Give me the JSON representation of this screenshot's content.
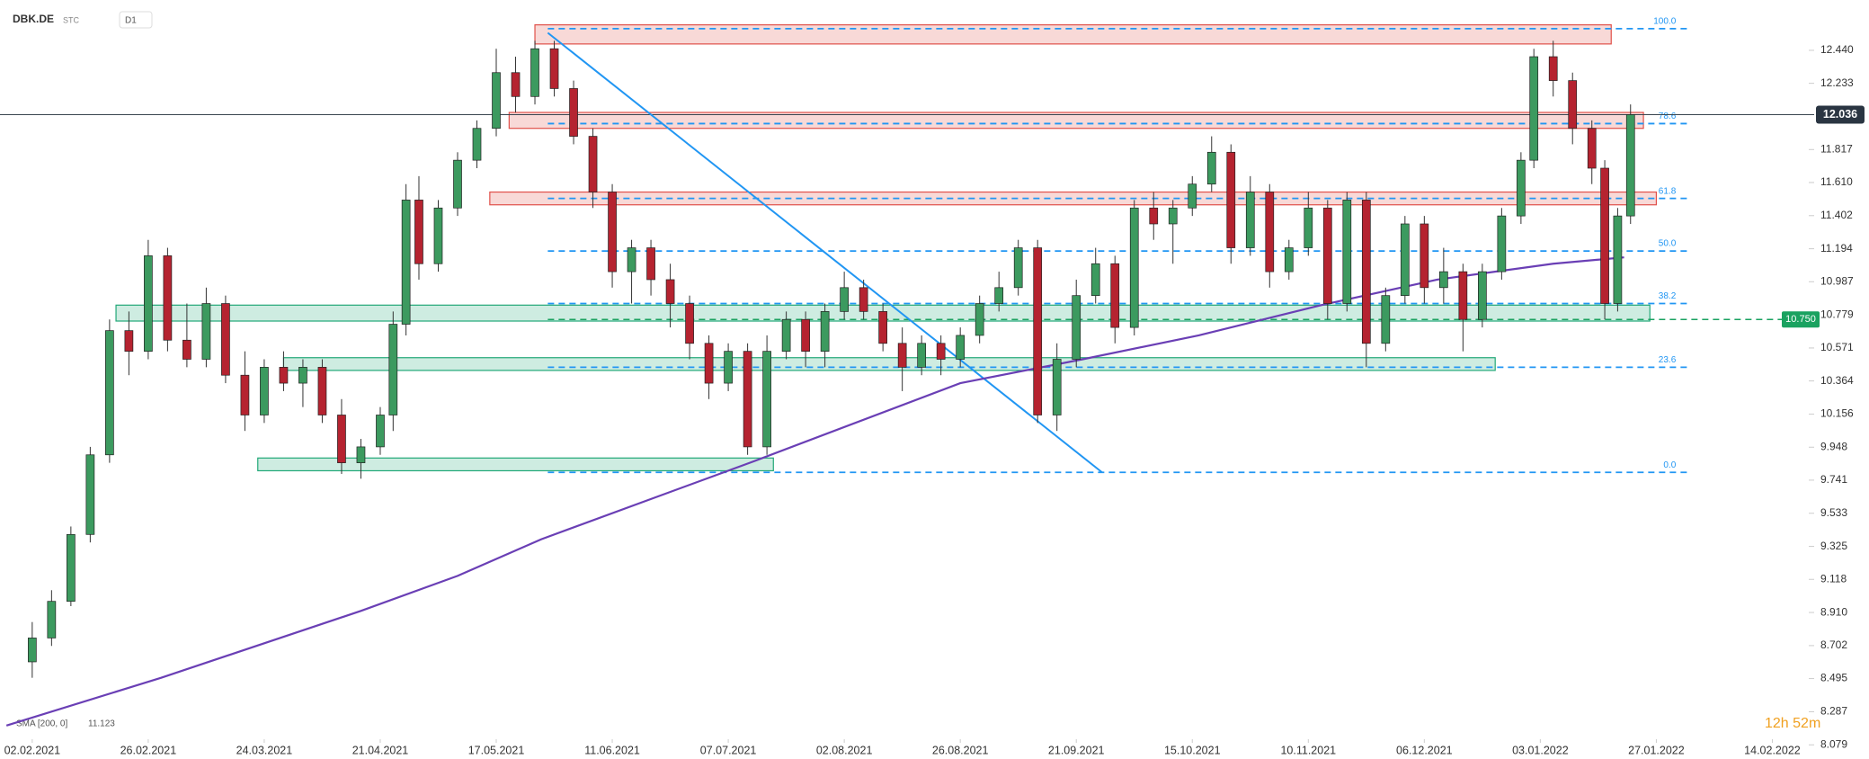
{
  "chart_data": {
    "type": "candlestick",
    "symbol": "DBK.DE",
    "market": "STC",
    "interval": "D1",
    "indicator_label": "SMA [200, 0]",
    "indicator_value": 11.123,
    "timer": "12h 52m",
    "xlim": [
      -5,
      285
    ],
    "ylim": [
      7.99,
      12.756
    ],
    "xticks": [
      {
        "value": 0,
        "label": "02.02.2021"
      },
      {
        "value": 18,
        "label": "26.02.2021"
      },
      {
        "value": 36,
        "label": "24.03.2021"
      },
      {
        "value": 54,
        "label": "21.04.2021"
      },
      {
        "value": 72,
        "label": "17.05.2021"
      },
      {
        "value": 90,
        "label": "11.06.2021"
      },
      {
        "value": 108,
        "label": "07.07.2021"
      },
      {
        "value": 126,
        "label": "02.08.2021"
      },
      {
        "value": 144,
        "label": "26.08.2021"
      },
      {
        "value": 162,
        "label": "21.09.2021"
      },
      {
        "value": 180,
        "label": "15.10.2021"
      },
      {
        "value": 198,
        "label": "10.11.2021"
      },
      {
        "value": 216,
        "label": "06.12.2021"
      },
      {
        "value": 234,
        "label": "03.01.2022"
      },
      {
        "value": 252,
        "label": "27.01.2022"
      },
      {
        "value": 270,
        "label": "14.02.2022"
      }
    ],
    "yticks": [
      {
        "value": 12.44,
        "label": "12.440"
      },
      12.233,
      11.817,
      {
        "value": 11.61,
        "label": "11.610"
      },
      11.402,
      11.194,
      10.987,
      10.779,
      10.571,
      10.364,
      10.156,
      9.948,
      9.741,
      9.533,
      9.325,
      9.118,
      {
        "value": 8.91,
        "label": "8.910"
      },
      8.702,
      8.495,
      8.287,
      8.079
    ],
    "x": [
      0,
      3,
      6,
      9,
      12,
      15,
      18,
      21,
      24,
      27,
      30,
      33,
      36,
      39,
      42,
      45,
      48,
      51,
      54,
      56,
      58,
      60,
      63,
      66,
      69,
      72,
      75,
      78,
      81,
      84,
      87,
      90,
      93,
      96,
      99,
      102,
      105,
      108,
      111,
      114,
      117,
      120,
      123,
      126,
      129,
      132,
      135,
      138,
      141,
      144,
      147,
      150,
      153,
      156,
      159,
      162,
      165,
      168,
      171,
      174,
      177,
      180,
      183,
      186,
      189,
      192,
      195,
      198,
      201,
      204,
      207,
      210,
      213,
      216,
      219,
      222,
      225,
      228,
      231,
      233,
      236,
      239,
      242,
      244,
      246,
      248
    ],
    "open": [
      8.6,
      8.75,
      8.98,
      9.4,
      9.9,
      10.68,
      10.55,
      11.15,
      10.62,
      10.5,
      10.85,
      10.4,
      10.15,
      10.45,
      10.35,
      10.45,
      10.15,
      9.85,
      9.95,
      10.15,
      10.72,
      11.5,
      11.1,
      11.45,
      11.75,
      11.95,
      12.3,
      12.15,
      12.45,
      12.2,
      11.9,
      11.55,
      11.05,
      11.2,
      11.0,
      10.85,
      10.6,
      10.35,
      10.55,
      9.95,
      10.55,
      10.75,
      10.55,
      10.8,
      10.95,
      10.8,
      10.6,
      10.45,
      10.6,
      10.5,
      10.65,
      10.85,
      10.95,
      11.2,
      10.15,
      10.5,
      10.9,
      11.1,
      10.7,
      11.45,
      11.35,
      11.45,
      11.6,
      11.8,
      11.2,
      11.55,
      11.05,
      11.2,
      11.45,
      10.85,
      11.5,
      10.6,
      10.9,
      11.35,
      10.95,
      11.05,
      10.75,
      11.05,
      11.4,
      11.75,
      12.4,
      12.25,
      11.95,
      11.7,
      10.85,
      11.4
    ],
    "high": [
      8.85,
      9.05,
      9.45,
      9.95,
      10.75,
      10.8,
      11.25,
      11.2,
      10.85,
      10.95,
      10.9,
      10.55,
      10.5,
      10.55,
      10.5,
      10.5,
      10.25,
      10.0,
      10.2,
      10.8,
      11.6,
      11.65,
      11.5,
      11.8,
      12.0,
      12.45,
      12.4,
      12.5,
      12.5,
      12.25,
      11.95,
      11.6,
      11.25,
      11.25,
      11.1,
      10.9,
      10.65,
      10.6,
      10.6,
      10.65,
      10.8,
      10.8,
      10.85,
      11.05,
      11.0,
      10.85,
      10.7,
      10.65,
      10.65,
      10.7,
      10.9,
      11.05,
      11.25,
      11.25,
      10.6,
      11.0,
      11.2,
      11.15,
      11.5,
      11.55,
      11.5,
      11.65,
      11.9,
      11.85,
      11.65,
      11.6,
      11.25,
      11.55,
      11.5,
      11.55,
      11.55,
      10.95,
      11.4,
      11.4,
      11.2,
      11.1,
      11.1,
      11.45,
      11.8,
      12.45,
      12.5,
      12.3,
      12.0,
      11.75,
      11.45,
      12.1
    ],
    "low": [
      8.5,
      8.7,
      8.95,
      9.35,
      9.85,
      10.4,
      10.5,
      10.55,
      10.45,
      10.45,
      10.35,
      10.05,
      10.1,
      10.3,
      10.2,
      10.1,
      9.78,
      9.75,
      9.9,
      10.05,
      10.65,
      11.0,
      11.05,
      11.4,
      11.7,
      11.9,
      12.05,
      12.1,
      12.15,
      11.85,
      11.45,
      10.95,
      10.85,
      10.9,
      10.7,
      10.5,
      10.25,
      10.3,
      9.9,
      9.9,
      10.5,
      10.45,
      10.45,
      10.75,
      10.75,
      10.55,
      10.3,
      10.4,
      10.4,
      10.45,
      10.6,
      10.8,
      10.9,
      10.1,
      10.05,
      10.45,
      10.85,
      10.6,
      10.65,
      11.25,
      11.1,
      11.4,
      11.55,
      11.1,
      11.15,
      10.95,
      11.0,
      11.15,
      10.75,
      10.8,
      10.45,
      10.55,
      10.85,
      10.85,
      10.85,
      10.55,
      10.7,
      11.0,
      11.35,
      11.7,
      12.15,
      11.85,
      11.6,
      10.75,
      10.8,
      11.35
    ],
    "close": [
      8.75,
      8.98,
      9.4,
      9.9,
      10.68,
      10.55,
      11.15,
      10.62,
      10.5,
      10.85,
      10.4,
      10.15,
      10.45,
      10.35,
      10.45,
      10.15,
      9.85,
      9.95,
      10.15,
      10.72,
      11.5,
      11.1,
      11.45,
      11.75,
      11.95,
      12.3,
      12.15,
      12.45,
      12.2,
      11.9,
      11.55,
      11.05,
      11.2,
      11.0,
      10.85,
      10.6,
      10.35,
      10.55,
      9.95,
      10.55,
      10.75,
      10.55,
      10.8,
      10.95,
      10.8,
      10.6,
      10.45,
      10.6,
      10.5,
      10.65,
      10.85,
      10.95,
      11.2,
      10.15,
      10.5,
      10.9,
      11.1,
      10.7,
      11.45,
      11.35,
      11.45,
      11.6,
      11.8,
      11.2,
      11.55,
      11.05,
      11.2,
      11.45,
      10.85,
      11.5,
      10.6,
      10.9,
      11.35,
      10.95,
      11.05,
      10.75,
      11.05,
      11.4,
      11.75,
      12.4,
      12.25,
      11.95,
      11.7,
      10.85,
      11.4,
      12.036
    ],
    "up_color": "#3c9a5f",
    "down_color": "#b52330",
    "sma": {
      "color": "#6a3fb5",
      "x": [
        -4,
        20,
        51,
        66,
        79,
        112,
        144,
        163,
        181,
        200,
        218,
        236,
        247
      ],
      "values": [
        8.2,
        8.5,
        8.92,
        9.14,
        9.37,
        9.86,
        10.35,
        10.5,
        10.65,
        10.84,
        11.0,
        11.1,
        11.14
      ]
    },
    "last_price": 12.036,
    "support_line": {
      "value": 10.75,
      "label": "10.750",
      "color": "#1aa260"
    },
    "trendline": {
      "color": "#2196f3",
      "x": [
        80,
        166
      ],
      "values": [
        12.55,
        9.79
      ]
    },
    "fib": {
      "color": "#2196f3",
      "x": [
        80,
        257
      ],
      "levels": [
        {
          "label": "100.0",
          "value": 12.576
        },
        {
          "label": "78.6",
          "value": 11.98
        },
        {
          "label": "61.8",
          "value": 11.51
        },
        {
          "label": "50.0",
          "value": 11.18
        },
        {
          "label": "38.2",
          "value": 10.85
        },
        {
          "label": "23.6",
          "value": 10.45
        },
        {
          "label": "0.0",
          "value": 9.79
        }
      ]
    },
    "zones": [
      {
        "from": 78,
        "to": 245,
        "low": 12.48,
        "high": 12.6,
        "color": "#e0504a"
      },
      {
        "from": 74,
        "to": 250,
        "low": 11.95,
        "high": 12.05,
        "color": "#e0504a"
      },
      {
        "from": 71,
        "to": 252,
        "low": 11.47,
        "high": 11.55,
        "color": "#e0504a"
      },
      {
        "from": 13,
        "to": 251,
        "low": 10.74,
        "high": 10.84,
        "color": "#22a878"
      },
      {
        "from": 39,
        "to": 227,
        "low": 10.43,
        "high": 10.51,
        "color": "#22a878"
      },
      {
        "from": 35,
        "to": 115,
        "low": 9.8,
        "high": 9.88,
        "color": "#22a878"
      }
    ]
  }
}
